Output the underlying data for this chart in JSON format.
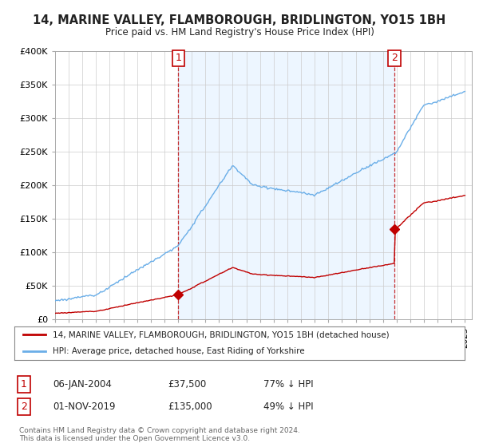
{
  "title": "14, MARINE VALLEY, FLAMBOROUGH, BRIDLINGTON, YO15 1BH",
  "subtitle": "Price paid vs. HM Land Registry's House Price Index (HPI)",
  "sale1_year": 2004.014,
  "sale1_price": 37500,
  "sale1_label": "1",
  "sale2_year": 2019.833,
  "sale2_price": 135000,
  "sale2_label": "2",
  "hpi_color": "#6aaee8",
  "price_color": "#c00000",
  "fill_color": "#ddeeff",
  "ylim": [
    0,
    400000
  ],
  "xlim_start": 1995.0,
  "xlim_end": 2025.5,
  "legend_label1": "14, MARINE VALLEY, FLAMBOROUGH, BRIDLINGTON, YO15 1BH (detached house)",
  "legend_label2": "HPI: Average price, detached house, East Riding of Yorkshire",
  "footer": "Contains HM Land Registry data © Crown copyright and database right 2024.\nThis data is licensed under the Open Government Licence v3.0.",
  "bg_color": "#ffffff",
  "plot_bg": "#ffffff",
  "sale1_date_str": "06-JAN-2004",
  "sale1_price_str": "£37,500",
  "sale1_hpi_str": "77% ↓ HPI",
  "sale2_date_str": "01-NOV-2019",
  "sale2_price_str": "£135,000",
  "sale2_hpi_str": "49% ↓ HPI"
}
